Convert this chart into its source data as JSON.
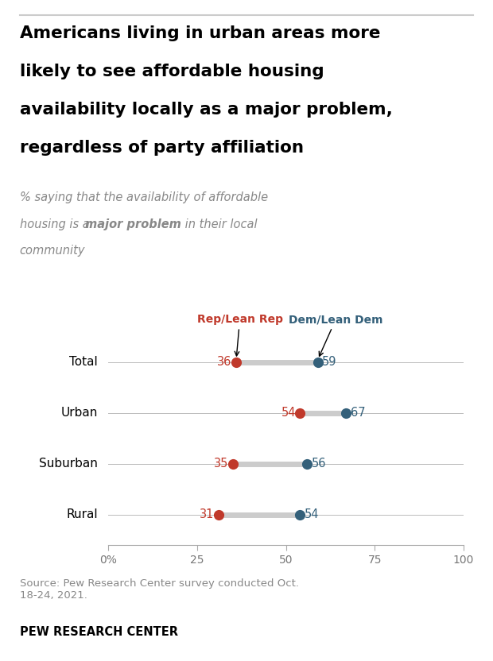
{
  "title_lines": [
    "Americans living in urban areas more",
    "likely to see affordable housing",
    "availability locally as a major problem,",
    "regardless of party affiliation"
  ],
  "categories": [
    "Total",
    "Urban",
    "Suburban",
    "Rural"
  ],
  "rep_values": [
    36,
    54,
    35,
    31
  ],
  "dem_values": [
    59,
    67,
    56,
    54
  ],
  "rep_color": "#C0392B",
  "dem_color": "#34607A",
  "connector_color": "#CCCCCC",
  "line_color": "#BBBBBB",
  "rep_label": "Rep/Lean Rep",
  "dem_label": "Dem/Lean Dem",
  "xlim": [
    0,
    100
  ],
  "xticks": [
    0,
    25,
    50,
    75,
    100
  ],
  "xticklabels": [
    "0%",
    "25",
    "50",
    "75",
    "100"
  ],
  "source_text": "Source: Pew Research Center survey conducted Oct.\n18-24, 2021.",
  "footer_text": "PEW RESEARCH CENTER",
  "background_color": "#FFFFFF",
  "subtitle_color": "#888888",
  "top_border_color": "#CCCCCC"
}
